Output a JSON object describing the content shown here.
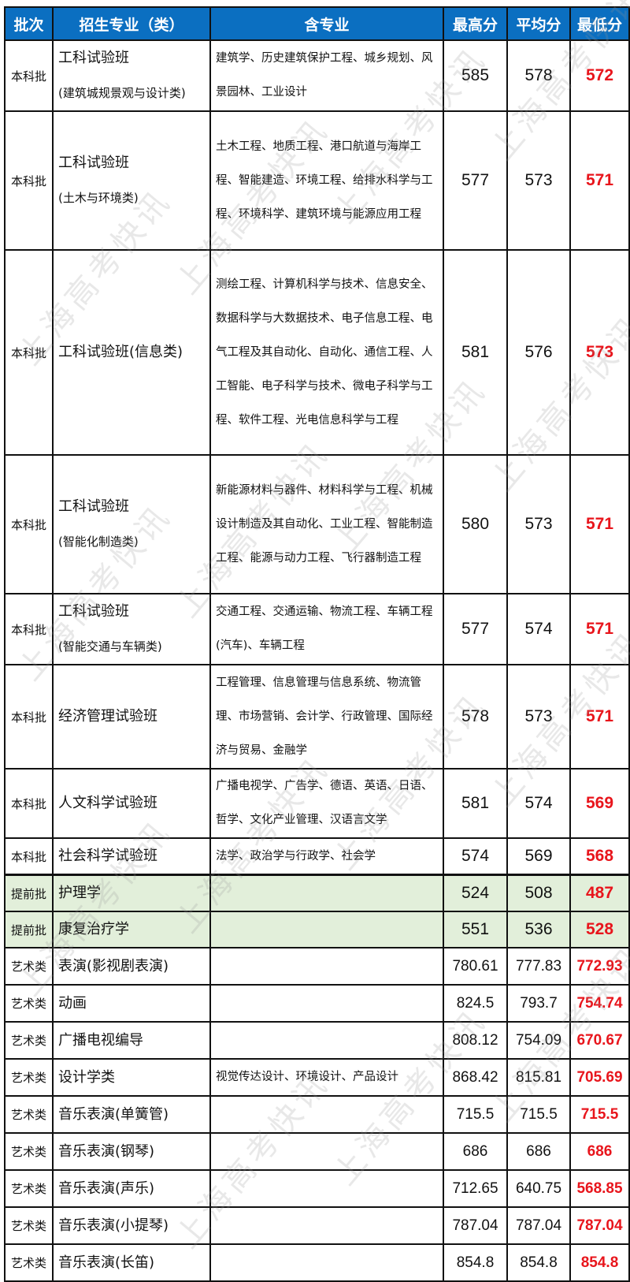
{
  "header": {
    "batch": "批次",
    "major": "招生专业（类）",
    "included": "含专业",
    "max": "最高分",
    "avg": "平均分",
    "min": "最低分"
  },
  "colors": {
    "header_bg": "#0b6fc1",
    "min_score": "#e8151c",
    "early_row_bg": "#e2efda"
  },
  "watermark": "上海高考快讯",
  "rows_main": [
    {
      "batch": "本科批",
      "major": "工科试验班",
      "major_sub": "(建筑城规景观与设计类)",
      "included": "建筑学、历史建筑保护工程、城乡规划、风景园林、工业设计",
      "max": "585",
      "avg": "578",
      "min": "572"
    },
    {
      "batch": "本科批",
      "major": "工科试验班",
      "major_sub": "(土木与环境类)",
      "included": "土木工程、地质工程、港口航道与海岸工程、智能建造、环境工程、给排水科学与工程、环境科学、建筑环境与能源应用工程",
      "max": "577",
      "avg": "573",
      "min": "571"
    },
    {
      "batch": "本科批",
      "major": "工科试验班(信息类)",
      "major_sub": "",
      "included": "测绘工程、计算机科学与技术、信息安全、数据科学与大数据技术、电子信息工程、电气工程及其自动化、自动化、通信工程、人工智能、电子科学与技术、微电子科学与工程、软件工程、光电信息科学与工程",
      "max": "581",
      "avg": "576",
      "min": "573"
    },
    {
      "batch": "本科批",
      "major": "工科试验班",
      "major_sub": "(智能化制造类)",
      "included": "新能源材料与器件、材料科学与工程、机械设计制造及其自动化、工业工程、智能制造工程、能源与动力工程、飞行器制造工程",
      "max": "580",
      "avg": "573",
      "min": "571"
    },
    {
      "batch": "本科批",
      "major": "工科试验班",
      "major_sub": "(智能交通与车辆类)",
      "included": "交通工程、交通运输、物流工程、车辆工程(汽车)、车辆工程",
      "max": "577",
      "avg": "574",
      "min": "571"
    },
    {
      "batch": "本科批",
      "major": "经济管理试验班",
      "major_sub": "",
      "included": "工程管理、信息管理与信息系统、物流管理、市场营销、会计学、行政管理、国际经济与贸易、金融学",
      "max": "578",
      "avg": "573",
      "min": "571"
    },
    {
      "batch": "本科批",
      "major": "人文科学试验班",
      "major_sub": "",
      "included": "广播电视学、广告学、德语、英语、日语、哲学、文化产业管理、汉语言文学",
      "max": "581",
      "avg": "574",
      "min": "569"
    },
    {
      "batch": "本科批",
      "major": "社会科学试验班",
      "major_sub": "",
      "included": "法学、政治学与行政学、社会学",
      "max": "574",
      "avg": "569",
      "min": "568"
    }
  ],
  "rows_other": [
    {
      "batch": "提前批",
      "major": "护理学",
      "included": "",
      "max": "524",
      "avg": "508",
      "min": "487",
      "type": "early"
    },
    {
      "batch": "提前批",
      "major": "康复治疗学",
      "included": "",
      "max": "551",
      "avg": "536",
      "min": "528",
      "type": "early"
    },
    {
      "batch": "艺术类",
      "major": "表演(影视剧表演)",
      "included": "",
      "max": "780.61",
      "avg": "777.83",
      "min": "772.93",
      "type": "art"
    },
    {
      "batch": "艺术类",
      "major": "动画",
      "included": "",
      "max": "824.5",
      "avg": "793.7",
      "min": "754.74",
      "type": "art"
    },
    {
      "batch": "艺术类",
      "major": "广播电视编导",
      "included": "",
      "max": "808.12",
      "avg": "754.09",
      "min": "670.67",
      "type": "art"
    },
    {
      "batch": "艺术类",
      "major": "设计学类",
      "included": "视觉传达设计、环境设计、产品设计",
      "max": "868.42",
      "avg": "815.81",
      "min": "705.69",
      "type": "art"
    },
    {
      "batch": "艺术类",
      "major": "音乐表演(单簧管)",
      "included": "",
      "max": "715.5",
      "avg": "715.5",
      "min": "715.5",
      "type": "art"
    },
    {
      "batch": "艺术类",
      "major": "音乐表演(钢琴)",
      "included": "",
      "max": "686",
      "avg": "686",
      "min": "686",
      "type": "art"
    },
    {
      "batch": "艺术类",
      "major": "音乐表演(声乐)",
      "included": "",
      "max": "712.65",
      "avg": "640.75",
      "min": "568.85",
      "type": "art"
    },
    {
      "batch": "艺术类",
      "major": "音乐表演(小提琴)",
      "included": "",
      "max": "787.04",
      "avg": "787.04",
      "min": "787.04",
      "type": "art"
    },
    {
      "batch": "艺术类",
      "major": "音乐表演(长笛)",
      "included": "",
      "max": "854.8",
      "avg": "854.8",
      "min": "854.8",
      "type": "art"
    }
  ]
}
